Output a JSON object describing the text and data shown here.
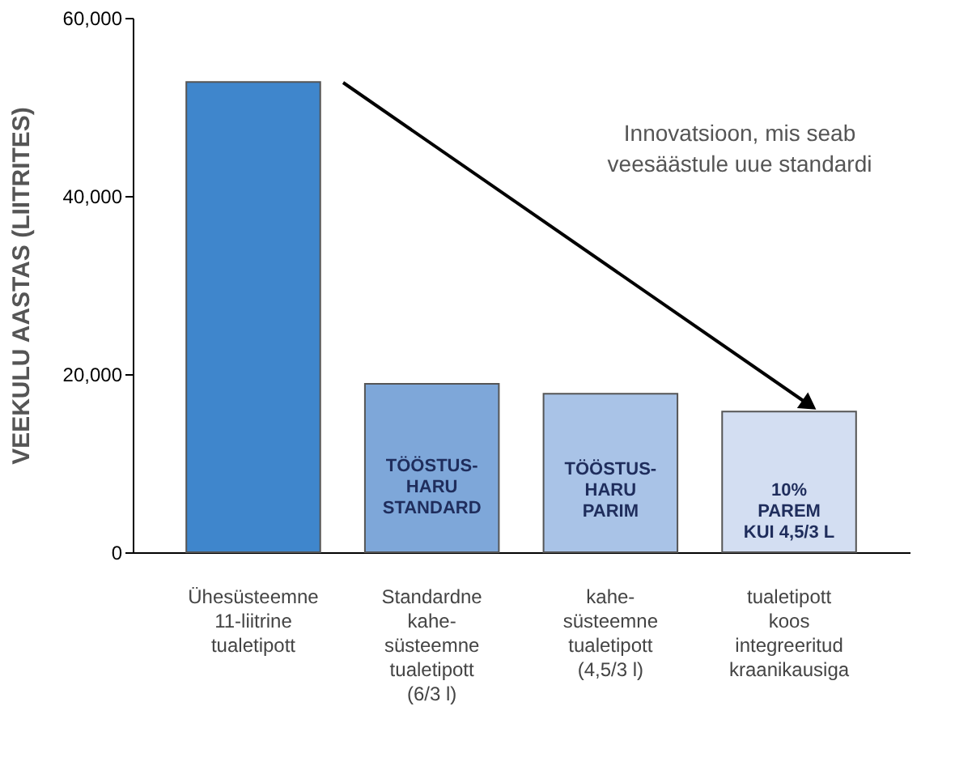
{
  "chart_data": {
    "type": "bar",
    "ylabel": "VEEKULU AASTAS (LIITRITES)",
    "categories": [
      "Ühesüsteemne\n11-liitrine\ntualetipott",
      "Standardne\nkahe-\nsüsteemne\ntualetipott\n(6/3 l)",
      "kahe-\nsüsteemne\ntualetipott\n(4,5/3 l)",
      "tualetipott\nkoos\nintegreeritud\nkraanikausiga"
    ],
    "values": [
      52800,
      18900,
      17800,
      15800
    ],
    "colors": [
      "#3f86cc",
      "#7ea7d9",
      "#a9c3e7",
      "#d3def2"
    ],
    "ylim": [
      0,
      60000
    ],
    "yticks": [
      0,
      {
        "value": 20000,
        "label": "20,000"
      },
      {
        "value": 40000,
        "label": "40,000"
      },
      {
        "value": 60000,
        "label": "60,000"
      }
    ],
    "grid": false,
    "annotations": [
      "TÖÖSTUS-\nHARU\nSTANDARD",
      "TÖÖSTUS-\nHARU\nPARIM",
      "10%\nPAREM\nKUI 4,5/3 L",
      "Innovatsioon, mis seab\nveesäästule uue standardi"
    ]
  }
}
